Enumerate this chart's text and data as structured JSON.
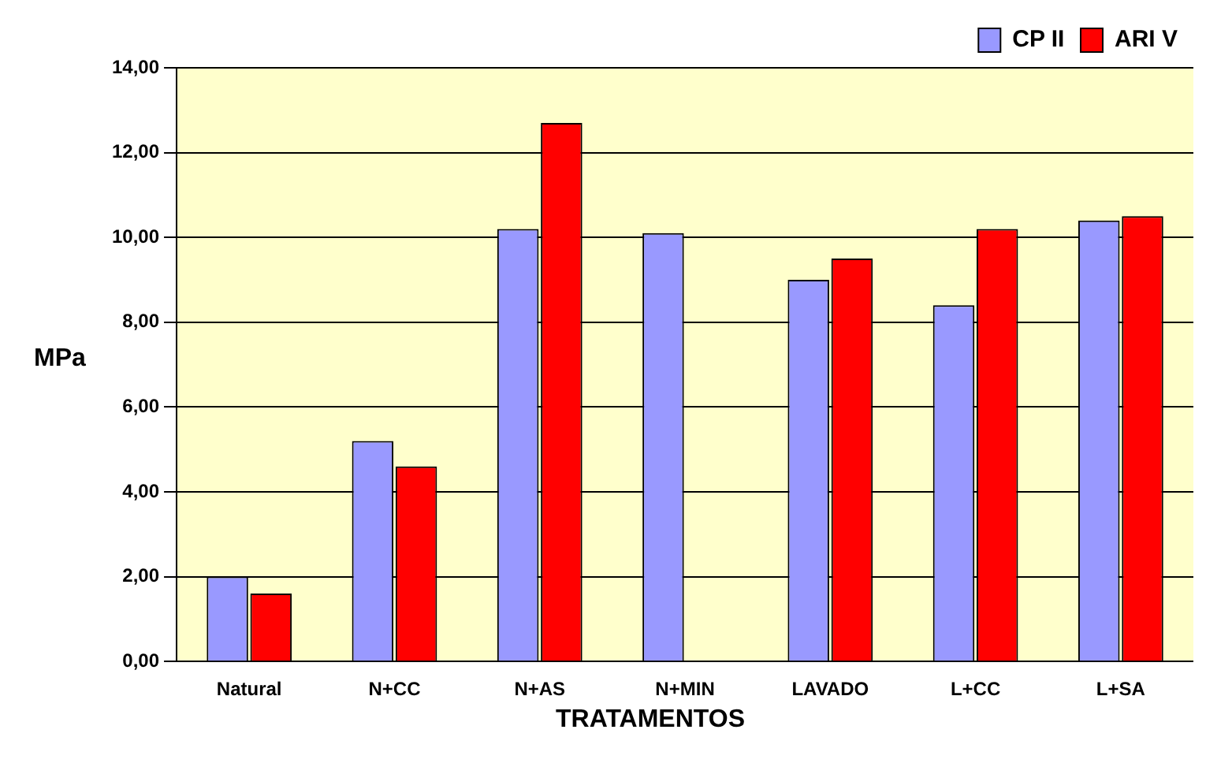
{
  "chart_data": {
    "type": "bar",
    "xlabel": "TRATAMENTOS",
    "ylabel": "MPa",
    "categories": [
      "Natural",
      "N+CC",
      "N+AS",
      "N+MIN",
      "LAVADO",
      "L+CC",
      "L+SA"
    ],
    "series": [
      {
        "name": "CP II",
        "color": "#9999ff",
        "values": [
          2.0,
          5.2,
          10.2,
          10.1,
          9.0,
          8.4,
          10.4
        ]
      },
      {
        "name": "ARI V",
        "color": "#ff0000",
        "values": [
          1.6,
          4.6,
          12.7,
          null,
          9.5,
          10.2,
          10.5
        ]
      }
    ],
    "ylim": [
      0,
      14
    ],
    "yticks": [
      {
        "value": 0,
        "label": "0,00"
      },
      {
        "value": 2,
        "label": "2,00"
      },
      {
        "value": 4,
        "label": "4,00"
      },
      {
        "value": 6,
        "label": "6,00"
      },
      {
        "value": 8,
        "label": "8,00"
      },
      {
        "value": 10,
        "label": "10,00"
      },
      {
        "value": 12,
        "label": "12,00"
      },
      {
        "value": 14,
        "label": "14,00"
      }
    ],
    "grid": "y",
    "legend": "top right"
  }
}
